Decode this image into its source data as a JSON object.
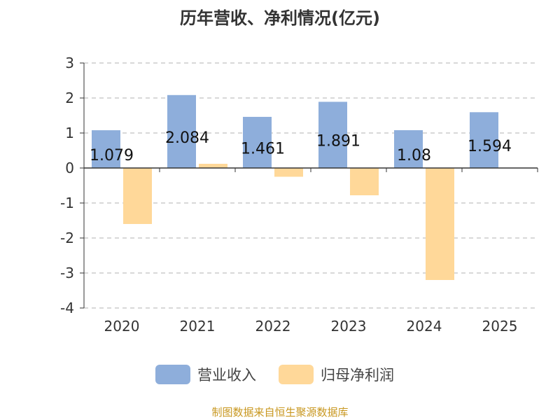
{
  "title": "历年营收、净利情况(亿元)",
  "footer": "制图数据来自恒生聚源数据库",
  "legend": {
    "revenue": "营业收入",
    "net_profit": "归母净利润"
  },
  "colors": {
    "revenue": "#8eaedb",
    "net_profit": "#ffd899",
    "axis": "#333333",
    "grid": "#cccccc",
    "footer": "#c8971f"
  },
  "chart_data": {
    "type": "bar",
    "title": "历年营收、净利情况(亿元)",
    "categories": [
      "2020",
      "2021",
      "2022",
      "2023",
      "2024",
      "2025"
    ],
    "ylim": [
      -4,
      3
    ],
    "yticks": [
      3,
      2,
      1,
      0,
      -1,
      -2,
      -3,
      -4
    ],
    "grid": true,
    "legend_position": "bottom",
    "series": [
      {
        "name": "营业收入",
        "values": [
          1.079,
          2.084,
          1.461,
          1.891,
          1.08,
          1.594
        ],
        "labels": [
          "1.079",
          "2.084",
          "1.461",
          "1.891",
          "1.08",
          "1.594"
        ]
      },
      {
        "name": "归母净利润",
        "values": [
          -1.6,
          0.12,
          -0.25,
          -0.78,
          -3.2,
          null
        ]
      }
    ]
  }
}
